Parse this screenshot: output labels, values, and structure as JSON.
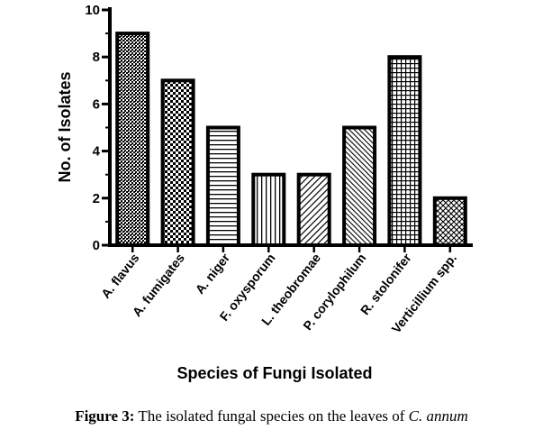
{
  "chart_data": {
    "type": "bar",
    "categories": [
      "A. flavus",
      "A. fumigates",
      "A. niger",
      "F. oxysporum",
      "L. theobromae",
      "P. corylophilum",
      "R. stolonifer",
      "Verticillium spp."
    ],
    "values": [
      9,
      7,
      5,
      3,
      3,
      5,
      8,
      2
    ],
    "patterns": [
      "dense-dots",
      "checker",
      "horizontal-lines",
      "vertical-lines",
      "diagonal-lines",
      "diagonal-lines-dense",
      "grid",
      "crosshatch"
    ],
    "xlabel": "Species of Fungi Isolated",
    "ylabel": "No. of Isolates",
    "ylim": [
      0,
      10
    ],
    "yticks": [
      "0",
      "2",
      "4",
      "6",
      "8",
      "10"
    ],
    "grid": false,
    "legend": "none"
  },
  "caption": {
    "label": "Figure 3:",
    "text": " The isolated fungal species on the leaves of ",
    "italic": "C. annum"
  }
}
